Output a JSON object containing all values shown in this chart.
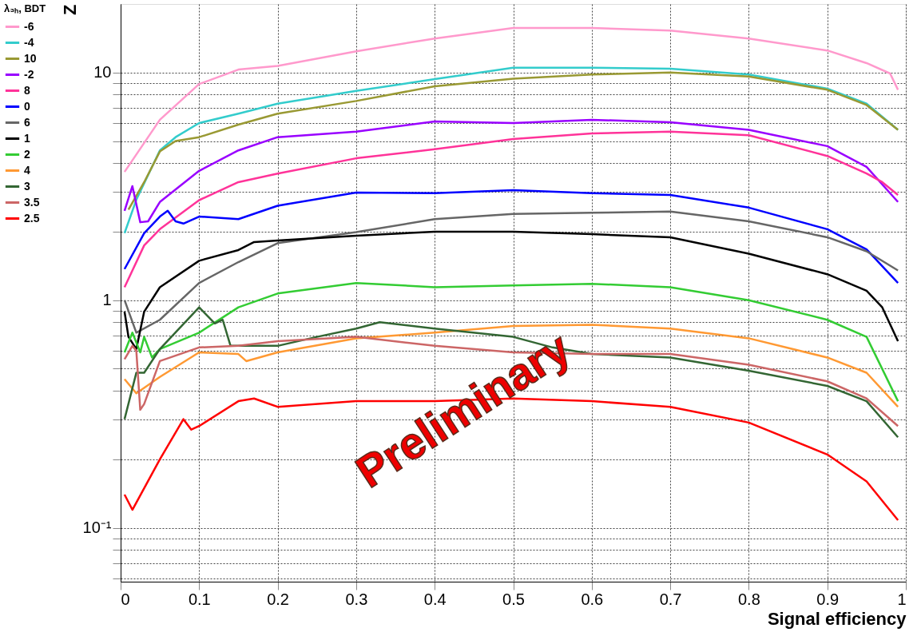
{
  "chart_data": {
    "type": "line",
    "xlabel": "Signal efficiency",
    "ylabel": "Z",
    "legend_title": "λ₃ₕ, BDT",
    "legend": "left",
    "grid": true,
    "log": "y",
    "line_style": "solid",
    "xlim": [
      0,
      1
    ],
    "xticks": [
      0,
      0.1,
      0.2,
      0.3,
      0.4,
      0.5,
      0.6,
      0.7,
      0.8,
      0.9,
      1
    ],
    "ylim": [
      0.058,
      20
    ],
    "yticks": [
      {
        "value": 0.06,
        "label": null
      },
      {
        "value": 0.07,
        "label": null
      },
      {
        "value": 0.08,
        "label": null
      },
      {
        "value": 0.09,
        "label": null
      },
      {
        "value": 0.1,
        "label": "10⁻¹"
      },
      {
        "value": 0.2,
        "label": null
      },
      {
        "value": 0.3,
        "label": null
      },
      {
        "value": 0.4,
        "label": null
      },
      {
        "value": 0.5,
        "label": null
      },
      {
        "value": 0.6,
        "label": null
      },
      {
        "value": 0.7,
        "label": null
      },
      {
        "value": 0.8,
        "label": null
      },
      {
        "value": 0.9,
        "label": null
      },
      1,
      {
        "value": 2,
        "label": null
      },
      {
        "value": 3,
        "label": null
      },
      {
        "value": 4,
        "label": null
      },
      {
        "value": 5,
        "label": null
      },
      {
        "value": 6,
        "label": null
      },
      {
        "value": 7,
        "label": null
      },
      {
        "value": 8,
        "label": null
      },
      {
        "value": 9,
        "label": null
      },
      10
    ],
    "annotations": [
      "Preliminary"
    ],
    "series": [
      {
        "name": "-6",
        "color": "#ff99cc",
        "x": [
          0.005,
          0.05,
          0.1,
          0.15,
          0.2,
          0.3,
          0.4,
          0.5,
          0.6,
          0.7,
          0.8,
          0.9,
          0.95,
          0.98,
          0.99
        ],
        "values": [
          3.66,
          6.2,
          8.9,
          10.3,
          10.7,
          12.4,
          14.1,
          15.7,
          15.7,
          15.3,
          14.1,
          12.5,
          11,
          9.9,
          8.4
        ]
      },
      {
        "name": "-4",
        "color": "#33cccc",
        "x": [
          0.005,
          0.02,
          0.05,
          0.07,
          0.1,
          0.15,
          0.2,
          0.3,
          0.4,
          0.5,
          0.6,
          0.7,
          0.8,
          0.9,
          0.95,
          0.99
        ],
        "values": [
          1.97,
          2.76,
          4.55,
          5.2,
          6.0,
          6.6,
          7.3,
          8.3,
          9.35,
          10.5,
          10.5,
          10.4,
          9.8,
          8.5,
          7.3,
          5.6
        ]
      },
      {
        "name": "10",
        "color": "#999933",
        "x": [
          0.01,
          0.03,
          0.05,
          0.07,
          0.1,
          0.15,
          0.2,
          0.3,
          0.4,
          0.5,
          0.6,
          0.7,
          0.8,
          0.9,
          0.95,
          0.99
        ],
        "values": [
          2.5,
          3.3,
          4.5,
          5.0,
          5.2,
          5.9,
          6.6,
          7.5,
          8.7,
          9.4,
          9.8,
          10.0,
          9.6,
          8.4,
          7.2,
          5.6
        ]
      },
      {
        "name": "-2",
        "color": "#9900ff",
        "x": [
          0.005,
          0.015,
          0.025,
          0.035,
          0.05,
          0.1,
          0.15,
          0.2,
          0.3,
          0.4,
          0.5,
          0.6,
          0.7,
          0.8,
          0.9,
          0.95,
          0.99
        ],
        "values": [
          2.47,
          3.17,
          2.2,
          2.22,
          2.7,
          3.7,
          4.55,
          5.2,
          5.5,
          6.1,
          6.0,
          6.2,
          6.05,
          5.6,
          4.75,
          3.85,
          2.7
        ]
      },
      {
        "name": "8",
        "color": "#ff3399",
        "x": [
          0.005,
          0.03,
          0.05,
          0.1,
          0.15,
          0.2,
          0.3,
          0.4,
          0.5,
          0.6,
          0.7,
          0.8,
          0.9,
          0.95,
          0.97,
          0.99
        ],
        "values": [
          1.14,
          1.74,
          2.05,
          2.75,
          3.3,
          3.6,
          4.2,
          4.6,
          5.1,
          5.4,
          5.5,
          5.3,
          4.3,
          3.6,
          3.3,
          2.9
        ]
      },
      {
        "name": "0",
        "color": "#0000ff",
        "x": [
          0.005,
          0.03,
          0.05,
          0.06,
          0.07,
          0.08,
          0.1,
          0.15,
          0.2,
          0.3,
          0.4,
          0.5,
          0.6,
          0.7,
          0.8,
          0.9,
          0.95,
          0.99
        ],
        "values": [
          1.37,
          1.97,
          2.33,
          2.47,
          2.22,
          2.17,
          2.33,
          2.27,
          2.6,
          2.97,
          2.95,
          3.04,
          2.95,
          2.9,
          2.55,
          2.05,
          1.67,
          1.19
        ]
      },
      {
        "name": "6",
        "color": "#666666",
        "x": [
          0.005,
          0.02,
          0.05,
          0.1,
          0.15,
          0.2,
          0.3,
          0.4,
          0.5,
          0.6,
          0.7,
          0.8,
          0.9,
          0.95,
          0.99
        ],
        "values": [
          1.0,
          0.72,
          0.82,
          1.19,
          1.47,
          1.78,
          1.99,
          2.27,
          2.39,
          2.42,
          2.45,
          2.22,
          1.89,
          1.64,
          1.35
        ]
      },
      {
        "name": "1",
        "color": "#000000",
        "x": [
          0.005,
          0.01,
          0.02,
          0.03,
          0.05,
          0.1,
          0.15,
          0.17,
          0.2,
          0.3,
          0.4,
          0.5,
          0.6,
          0.7,
          0.8,
          0.9,
          0.95,
          0.97,
          0.99
        ],
        "values": [
          0.89,
          0.69,
          0.61,
          0.89,
          1.14,
          1.49,
          1.66,
          1.8,
          1.83,
          1.92,
          2.0,
          2.0,
          1.95,
          1.89,
          1.6,
          1.3,
          1.1,
          0.93,
          0.66
        ]
      },
      {
        "name": "2",
        "color": "#33cc33",
        "x": [
          0.005,
          0.015,
          0.025,
          0.03,
          0.04,
          0.05,
          0.1,
          0.15,
          0.2,
          0.3,
          0.4,
          0.5,
          0.6,
          0.7,
          0.8,
          0.9,
          0.95,
          0.99
        ],
        "values": [
          0.59,
          0.72,
          0.59,
          0.69,
          0.56,
          0.61,
          0.72,
          0.93,
          1.07,
          1.19,
          1.14,
          1.16,
          1.18,
          1.14,
          1.0,
          0.82,
          0.69,
          0.36
        ]
      },
      {
        "name": "4",
        "color": "#ff9933",
        "x": [
          0.005,
          0.02,
          0.05,
          0.1,
          0.15,
          0.16,
          0.2,
          0.3,
          0.4,
          0.5,
          0.6,
          0.7,
          0.8,
          0.9,
          0.95,
          0.99
        ],
        "values": [
          0.45,
          0.39,
          0.46,
          0.59,
          0.58,
          0.54,
          0.59,
          0.68,
          0.72,
          0.77,
          0.78,
          0.75,
          0.68,
          0.56,
          0.48,
          0.34
        ]
      },
      {
        "name": "3",
        "color": "#336633",
        "x": [
          0.005,
          0.02,
          0.03,
          0.05,
          0.1,
          0.12,
          0.13,
          0.14,
          0.2,
          0.25,
          0.3,
          0.33,
          0.4,
          0.5,
          0.55,
          0.6,
          0.7,
          0.8,
          0.9,
          0.95,
          0.99
        ],
        "values": [
          0.3,
          0.48,
          0.48,
          0.61,
          0.93,
          0.79,
          0.82,
          0.63,
          0.63,
          0.69,
          0.75,
          0.8,
          0.75,
          0.69,
          0.62,
          0.58,
          0.56,
          0.49,
          0.42,
          0.36,
          0.25
        ]
      },
      {
        "name": "3.5",
        "color": "#cc6666",
        "x": [
          0.005,
          0.015,
          0.02,
          0.025,
          0.03,
          0.05,
          0.1,
          0.15,
          0.2,
          0.3,
          0.4,
          0.5,
          0.6,
          0.7,
          0.8,
          0.9,
          0.95,
          0.99
        ],
        "values": [
          0.55,
          0.63,
          0.6,
          0.33,
          0.35,
          0.54,
          0.62,
          0.63,
          0.66,
          0.69,
          0.63,
          0.59,
          0.58,
          0.58,
          0.52,
          0.44,
          0.37,
          0.28
        ]
      },
      {
        "name": "2.5",
        "color": "#ff0000",
        "x": [
          0.005,
          0.015,
          0.05,
          0.08,
          0.09,
          0.1,
          0.15,
          0.17,
          0.2,
          0.3,
          0.4,
          0.5,
          0.6,
          0.7,
          0.8,
          0.9,
          0.95,
          0.99
        ],
        "values": [
          0.14,
          0.12,
          0.2,
          0.3,
          0.27,
          0.28,
          0.36,
          0.37,
          0.34,
          0.36,
          0.36,
          0.37,
          0.36,
          0.34,
          0.29,
          0.21,
          0.16,
          0.108
        ]
      }
    ]
  }
}
